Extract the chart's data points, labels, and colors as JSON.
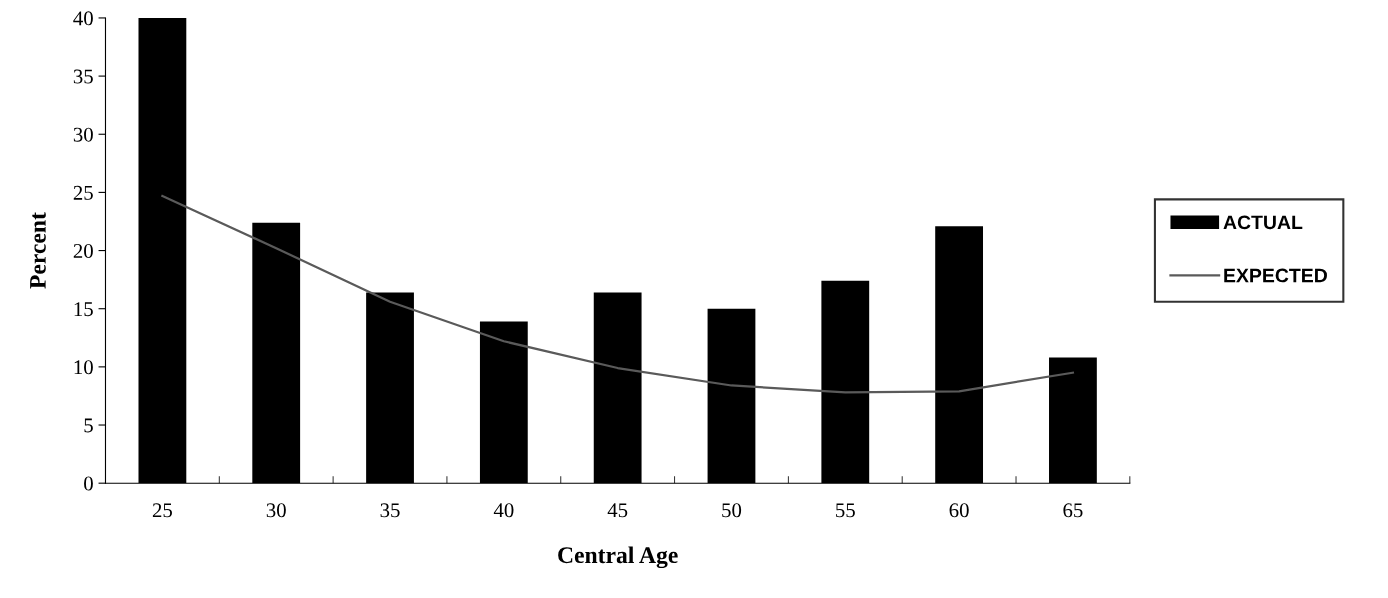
{
  "chart_data": {
    "type": "bar",
    "xlabel": "Central Age",
    "ylabel": "Percent",
    "categories": [
      "25",
      "30",
      "35",
      "40",
      "45",
      "50",
      "55",
      "60",
      "65"
    ],
    "series": [
      {
        "name": "ACTUAL",
        "color": "#000000",
        "values": [
          40,
          22.4,
          16.4,
          13.9,
          16.4,
          15.0,
          17.4,
          22.1,
          10.8
        ]
      },
      {
        "name": "EXPECTED",
        "type": "line",
        "color": "#5a5a5a",
        "values": [
          24.7,
          20.2,
          15.6,
          12.2,
          9.9,
          8.4,
          7.8,
          7.9,
          9.5
        ]
      }
    ],
    "ylim": [
      0,
      40
    ],
    "yticks": [
      0,
      5,
      10,
      15,
      20,
      25,
      30,
      35,
      40
    ],
    "grid": false,
    "legend": "right",
    "marker": "none",
    "line_style": "solid"
  }
}
